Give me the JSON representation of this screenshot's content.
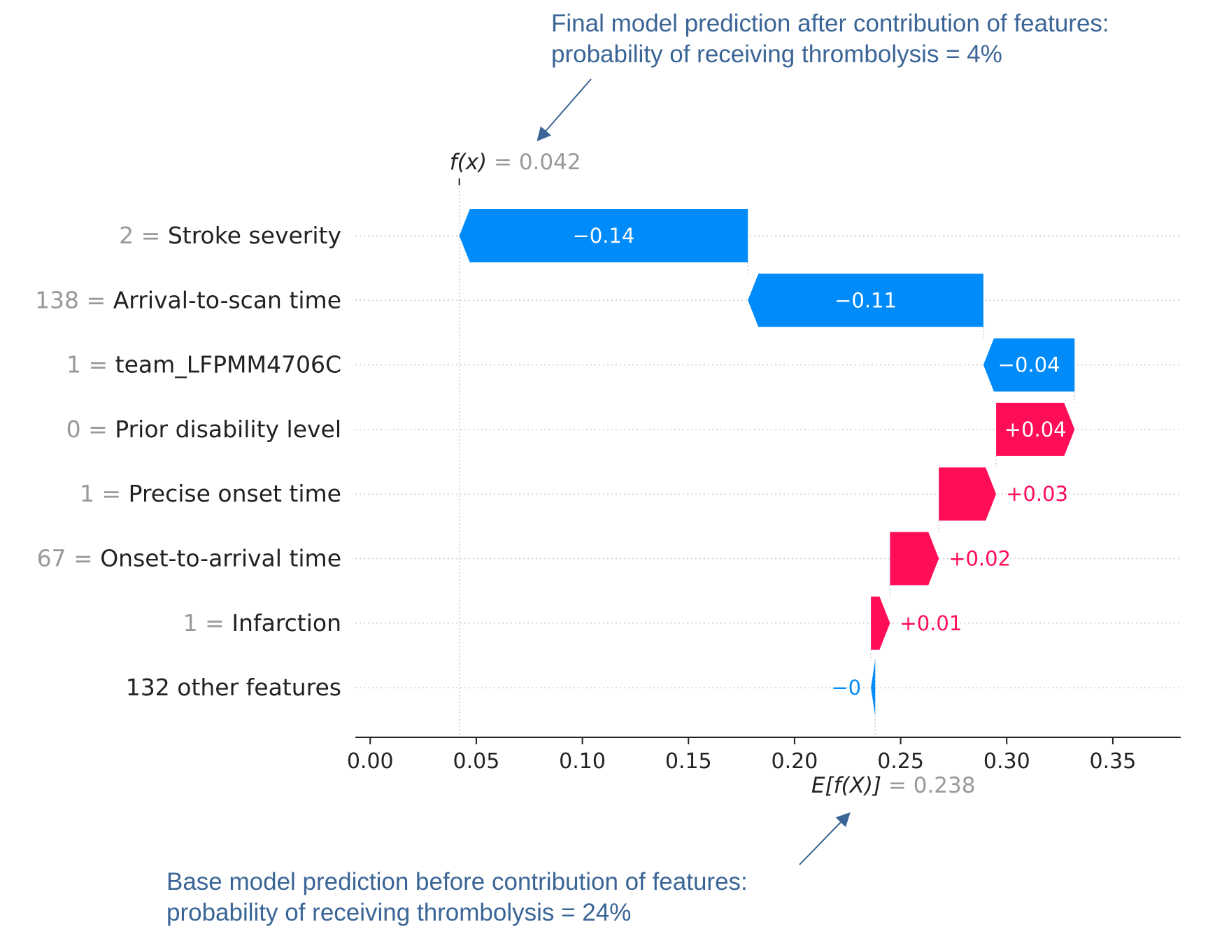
{
  "annotations": {
    "top_line1": "Final model prediction after contribution of features:",
    "top_line2": "probability of receiving thrombolysis = 4%",
    "bottom_line1": "Base model prediction before contribution of features:",
    "bottom_line2": "probability of receiving thrombolysis = 24%"
  },
  "chart_data": {
    "type": "waterfall",
    "final_prediction": {
      "label": "f(x)",
      "eq": " = ",
      "value": "0.042",
      "numeric": 0.042
    },
    "base_prediction": {
      "label": "E[f(X)]",
      "eq": " = ",
      "value": "0.238",
      "numeric": 0.238
    },
    "xlim": [
      -0.007,
      0.382
    ],
    "x_ticks": [
      "0.00",
      "0.05",
      "0.10",
      "0.15",
      "0.20",
      "0.25",
      "0.30",
      "0.35"
    ],
    "features": [
      {
        "value": "2",
        "eq": " = ",
        "name": "Stroke severity",
        "start": 0.178,
        "end": 0.042,
        "label": "−0.14",
        "label_inside": true
      },
      {
        "value": "138",
        "eq": " = ",
        "name": "Arrival-to-scan time",
        "start": 0.289,
        "end": 0.178,
        "label": "−0.11",
        "label_inside": true
      },
      {
        "value": "1",
        "eq": " = ",
        "name": "team_LFPMM4706C",
        "start": 0.332,
        "end": 0.289,
        "label": "−0.04",
        "label_inside": true
      },
      {
        "value": "0",
        "eq": " = ",
        "name": "Prior disability level",
        "start": 0.295,
        "end": 0.332,
        "label": "+0.04",
        "label_inside": true
      },
      {
        "value": "1",
        "eq": " = ",
        "name": "Precise onset time",
        "start": 0.268,
        "end": 0.295,
        "label": "+0.03",
        "label_inside": false
      },
      {
        "value": "67",
        "eq": " = ",
        "name": "Onset-to-arrival time",
        "start": 0.245,
        "end": 0.268,
        "label": "+0.02",
        "label_inside": false
      },
      {
        "value": "1",
        "eq": " = ",
        "name": "Infarction",
        "start": 0.236,
        "end": 0.245,
        "label": "+0.01",
        "label_inside": false
      },
      {
        "value": "",
        "eq": "",
        "name": "132 other features",
        "start": 0.238,
        "end": 0.236,
        "label": "−0",
        "label_inside": false
      }
    ],
    "colors": {
      "positive": "#ff0d57",
      "negative": "#008bfb",
      "text": "#222222",
      "muted": "#999999",
      "grid": "#cccccc",
      "annotation": "#3a6596"
    }
  }
}
